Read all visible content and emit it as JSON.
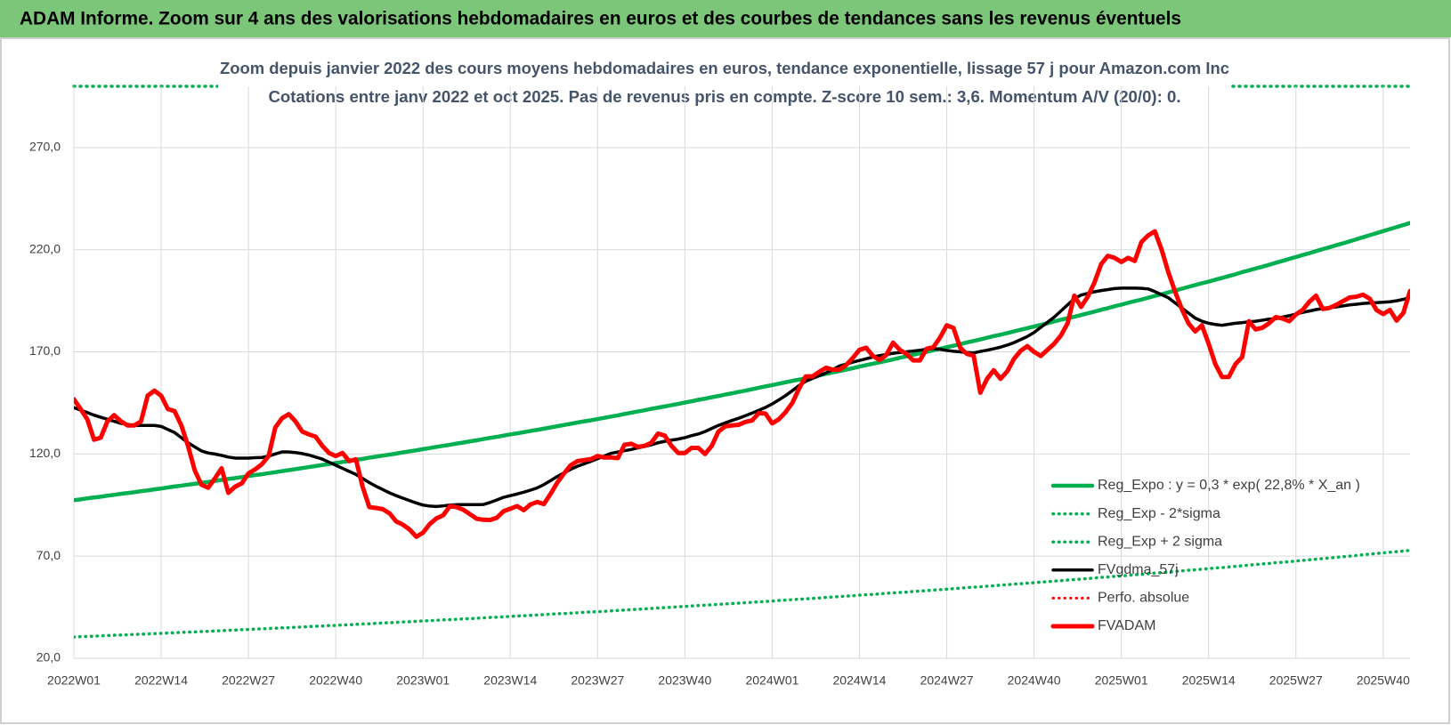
{
  "header": {
    "title": "ADAM Informe. Zoom sur 4 ans des valorisations hebdomadaires en euros et des courbes de tendances sans les revenus éventuels"
  },
  "chart_data": {
    "type": "line",
    "title": "Zoom depuis janvier 2022 des cours moyens hebdomadaires en euros, tendance exponentielle, lissage 57 j pour Amazon.com Inc",
    "subtitle": "Cotations entre janv 2022 et oct 2025. Pas de revenus pris en compte. Z-score 10 sem.: 3,6. Momentum A/V (20/0): 0.",
    "categories": [
      "2022W01",
      null,
      null,
      null,
      null,
      null,
      null,
      null,
      null,
      null,
      null,
      null,
      null,
      "2022W14",
      null,
      null,
      null,
      null,
      null,
      null,
      null,
      null,
      null,
      null,
      null,
      null,
      "2022W27",
      null,
      null,
      null,
      null,
      null,
      null,
      null,
      null,
      null,
      null,
      null,
      null,
      "2022W40",
      null,
      null,
      null,
      null,
      null,
      null,
      null,
      null,
      null,
      null,
      null,
      null,
      "2023W01",
      null,
      null,
      null,
      null,
      null,
      null,
      null,
      null,
      null,
      null,
      null,
      null,
      "2023W14",
      null,
      null,
      null,
      null,
      null,
      null,
      null,
      null,
      null,
      null,
      null,
      null,
      "2023W27",
      null,
      null,
      null,
      null,
      null,
      null,
      null,
      null,
      null,
      null,
      null,
      null,
      "2023W40",
      null,
      null,
      null,
      null,
      null,
      null,
      null,
      null,
      null,
      null,
      null,
      null,
      "2024W01",
      null,
      null,
      null,
      null,
      null,
      null,
      null,
      null,
      null,
      null,
      null,
      null,
      "2024W14",
      null,
      null,
      null,
      null,
      null,
      null,
      null,
      null,
      null,
      null,
      null,
      null,
      "2024W27",
      null,
      null,
      null,
      null,
      null,
      null,
      null,
      null,
      null,
      null,
      null,
      null,
      "2024W40",
      null,
      null,
      null,
      null,
      null,
      null,
      null,
      null,
      null,
      null,
      null,
      null,
      "2025W01",
      null,
      null,
      null,
      null,
      null,
      null,
      null,
      null,
      null,
      null,
      null,
      null,
      "2025W14",
      null,
      null,
      null,
      null,
      null,
      null,
      null,
      null,
      null,
      null,
      null,
      null,
      "2025W27",
      null,
      null,
      null,
      null,
      null,
      null,
      null,
      null,
      null,
      null,
      null,
      null,
      "2025W40",
      null,
      null,
      null,
      null
    ],
    "ylim": [
      20,
      300
    ],
    "yticks": [
      {
        "value": 20,
        "label": "20,0"
      },
      {
        "value": 70,
        "label": "70,0"
      },
      {
        "value": 120,
        "label": "120,0"
      },
      {
        "value": 170,
        "label": "170,0"
      },
      {
        "value": 220,
        "label": "220,0"
      },
      {
        "value": 270,
        "label": "270,0"
      }
    ],
    "grid": true,
    "legend": "right",
    "series": [
      {
        "name": "Reg_Expo : y = 0,3 * exp( 22,8% * X_an )",
        "color": "#00b050",
        "dash": "solid",
        "width": 4.5,
        "values": [
          97.4,
          97.8,
          98.3,
          98.7,
          99.1,
          99.6,
          100.0,
          100.5,
          100.9,
          101.3,
          101.8,
          102.2,
          102.7,
          103.1,
          103.6,
          104.1,
          104.5,
          105.0,
          105.4,
          105.9,
          106.3,
          106.8,
          107.3,
          107.8,
          108.2,
          108.7,
          109.2,
          109.7,
          110.1,
          110.6,
          111.1,
          111.6,
          112.1,
          112.6,
          113.1,
          113.6,
          114.1,
          114.6,
          115.1,
          115.6,
          116.1,
          116.6,
          117.1,
          117.6,
          118.2,
          118.7,
          119.2,
          119.7,
          120.2,
          120.8,
          121.3,
          121.8,
          122.4,
          122.9,
          123.5,
          124.0,
          124.5,
          125.1,
          125.6,
          126.2,
          126.7,
          127.3,
          127.9,
          128.4,
          129.0,
          129.6,
          130.1,
          130.7,
          131.3,
          131.8,
          132.4,
          133.0,
          133.6,
          134.2,
          134.8,
          135.4,
          136.0,
          136.5,
          137.1,
          137.7,
          138.3,
          138.9,
          139.6,
          140.2,
          140.8,
          141.4,
          142.1,
          142.7,
          143.3,
          143.9,
          144.5,
          145.2,
          145.8,
          146.5,
          147.1,
          147.8,
          148.4,
          149.1,
          149.7,
          150.4,
          151.0,
          151.7,
          152.4,
          153.1,
          153.7,
          154.4,
          155.1,
          155.8,
          156.4,
          157.1,
          157.8,
          158.5,
          159.2,
          159.9,
          160.6,
          161.3,
          162.0,
          162.8,
          163.5,
          164.2,
          164.9,
          165.6,
          166.3,
          167.1,
          167.8,
          168.6,
          169.3,
          170.0,
          170.8,
          171.5,
          172.3,
          173.0,
          173.8,
          174.6,
          175.3,
          176.1,
          176.9,
          177.7,
          178.4,
          179.2,
          180.0,
          180.8,
          181.6,
          182.4,
          183.2,
          184.0,
          184.9,
          185.7,
          186.5,
          187.2,
          188.0,
          188.9,
          189.7,
          190.6,
          191.4,
          192.3,
          193.1,
          194.0,
          194.8,
          195.6,
          196.5,
          197.4,
          198.2,
          199.1,
          200.0,
          200.9,
          201.8,
          202.7,
          203.6,
          204.4,
          205.3,
          206.2,
          207.1,
          208.0,
          209.0,
          209.9,
          210.8,
          211.7,
          212.6,
          213.6,
          214.5,
          215.5,
          216.4,
          217.4,
          218.3,
          219.3,
          220.3,
          221.2,
          222.2,
          223.1,
          224.1,
          225.1,
          226.1,
          227.1,
          228.1,
          229.1,
          230.1,
          231.1,
          232.1,
          233.1
        ]
      },
      {
        "name": "Reg_Exp - 2*sigma",
        "color": "#00b050",
        "dash": "dotted",
        "width": 3.5,
        "values": [
          30.4,
          30.6,
          30.7,
          30.8,
          31.0,
          31.1,
          31.3,
          31.4,
          31.5,
          31.7,
          31.8,
          31.9,
          32.1,
          32.2,
          32.4,
          32.5,
          32.7,
          32.8,
          32.9,
          33.1,
          33.2,
          33.4,
          33.5,
          33.7,
          33.8,
          34.0,
          34.1,
          34.3,
          34.4,
          34.6,
          34.7,
          34.9,
          35.0,
          35.2,
          35.3,
          35.5,
          35.7,
          35.8,
          36.0,
          36.1,
          36.3,
          36.4,
          36.6,
          36.8,
          36.9,
          37.1,
          37.3,
          37.4,
          37.6,
          37.8,
          37.9,
          38.1,
          38.3,
          38.4,
          38.6,
          38.8,
          38.9,
          39.1,
          39.3,
          39.4,
          39.6,
          39.8,
          40.0,
          40.1,
          40.3,
          40.5,
          40.7,
          40.8,
          41.0,
          41.2,
          41.4,
          41.6,
          41.8,
          41.9,
          42.1,
          42.3,
          42.5,
          42.7,
          42.8,
          43.0,
          43.2,
          43.4,
          43.6,
          43.8,
          44.0,
          44.2,
          44.4,
          44.6,
          44.8,
          45.0,
          45.2,
          45.4,
          45.6,
          45.8,
          46.0,
          46.2,
          46.4,
          46.6,
          46.8,
          47.0,
          47.2,
          47.4,
          47.6,
          47.8,
          48.0,
          48.3,
          48.5,
          48.7,
          48.9,
          49.1,
          49.3,
          49.5,
          49.8,
          50.0,
          50.2,
          50.4,
          50.6,
          50.9,
          51.1,
          51.3,
          51.5,
          51.8,
          52.0,
          52.2,
          52.4,
          52.7,
          52.9,
          53.1,
          53.4,
          53.6,
          53.8,
          54.1,
          54.3,
          54.6,
          54.8,
          55.0,
          55.3,
          55.5,
          55.8,
          56.0,
          56.3,
          56.5,
          56.8,
          57.0,
          57.3,
          57.5,
          57.8,
          58.0,
          58.3,
          58.5,
          58.8,
          59.0,
          59.3,
          59.6,
          59.8,
          60.1,
          60.3,
          60.6,
          60.9,
          61.1,
          61.4,
          61.7,
          61.9,
          62.2,
          62.5,
          62.8,
          63.1,
          63.3,
          63.6,
          63.9,
          64.2,
          64.4,
          64.7,
          65.0,
          65.3,
          65.6,
          65.9,
          66.2,
          66.4,
          66.8,
          67.0,
          67.3,
          67.6,
          67.9,
          68.2,
          68.5,
          68.8,
          69.1,
          69.4,
          69.7,
          70.0,
          70.3,
          70.7,
          71.0,
          71.3,
          71.6,
          71.9,
          72.2,
          72.5,
          72.8
        ]
      },
      {
        "name": "Reg_Exp + 2 sigma",
        "color": "#00b050",
        "dash": "dotted",
        "width": 3.5
      },
      {
        "name": "FVgdma_57j",
        "color": "#000000",
        "dash": "solid",
        "width": 3.5,
        "values": [
          142.7,
          141.5,
          140.3,
          139,
          138,
          137,
          136,
          135,
          134.5,
          134,
          134,
          134,
          134,
          133.5,
          132,
          130.5,
          128,
          125.5,
          123.5,
          121.5,
          120.5,
          120,
          119.3,
          118.5,
          118,
          118,
          118,
          118.2,
          118.3,
          119,
          120,
          121,
          121,
          120.7,
          120.2,
          119.5,
          118.5,
          117.5,
          116,
          114.5,
          113,
          111.5,
          110,
          108,
          106,
          104.2,
          102.6,
          101,
          99.6,
          98.4,
          97.2,
          96,
          95,
          94.5,
          94.3,
          94.6,
          95,
          95.2,
          95.2,
          95.2,
          95.2,
          95.3,
          96.3,
          97.5,
          98.8,
          99.6,
          100.4,
          101.3,
          102.3,
          103.4,
          105,
          107,
          109,
          110.8,
          112.5,
          114,
          115.2,
          116.4,
          117.7,
          119,
          120.3,
          121,
          121.6,
          122.2,
          123,
          123.7,
          124.5,
          125.5,
          126.2,
          126.8,
          127.3,
          128,
          129,
          129.8,
          131,
          132.5,
          134,
          135.2,
          136.4,
          137.5,
          138.7,
          140,
          141.4,
          142.8,
          144.5,
          146.5,
          148.6,
          151,
          153.5,
          155.6,
          157,
          158.3,
          159.7,
          161.3,
          163,
          164,
          165,
          165.8,
          166.6,
          167.5,
          168.2,
          168.7,
          169.3,
          169.7,
          170,
          170.4,
          170.8,
          171.3,
          171.7,
          171.2,
          170.7,
          170.3,
          170,
          169.7,
          169.5,
          170.2,
          170.8,
          171.5,
          172.3,
          173.3,
          174.5,
          176,
          177.5,
          179.5,
          182,
          184.5,
          187,
          190,
          193,
          196,
          197.8,
          198.6,
          199.4,
          200,
          200.5,
          201,
          201.2,
          201.2,
          201.2,
          201.1,
          200.8,
          199.5,
          198,
          196.5,
          194,
          191.5,
          189,
          186.5,
          185,
          184,
          183.4,
          183,
          183.5,
          184,
          184.3,
          184.7,
          185,
          185.5,
          186,
          186.2,
          187,
          187.7,
          188.5,
          189.3,
          190,
          190.7,
          191.2,
          191.7,
          192,
          192.5,
          193,
          193.3,
          193.7,
          193.9,
          194.1,
          194.3,
          194.5,
          195,
          195.7,
          196.6
        ]
      },
      {
        "name": "Perfo. absolue",
        "color": "#ff0000",
        "dash": "dotted",
        "width": 3
      },
      {
        "name": "FVADAM",
        "color": "#ff0000",
        "dash": "solid",
        "width": 5,
        "values": [
          146.8,
          142,
          137,
          127,
          128,
          136,
          139,
          136,
          134,
          134,
          136,
          148.6,
          151,
          148.5,
          142,
          141,
          134,
          124,
          112,
          105,
          103.5,
          108,
          113,
          101,
          104,
          105.6,
          110.5,
          112.5,
          115,
          119,
          133,
          137.5,
          139.5,
          136,
          131,
          129.6,
          128.5,
          124,
          120.5,
          119,
          120.5,
          116.5,
          117.4,
          104,
          94,
          93.6,
          93,
          91,
          87,
          85.4,
          83,
          79.5,
          81.5,
          85.7,
          88.5,
          90,
          94.5,
          94,
          92.7,
          90.5,
          88.3,
          87.8,
          87.7,
          88.8,
          92,
          93.2,
          94.5,
          92.5,
          95.3,
          96.5,
          95.5,
          100.5,
          106,
          110.5,
          114.5,
          116.5,
          117,
          117.5,
          119,
          118.3,
          118.3,
          118,
          124.5,
          125,
          123.5,
          124,
          125.5,
          130,
          129,
          124,
          120.5,
          120.5,
          123,
          123,
          120,
          124,
          131,
          133.5,
          134,
          134.3,
          135.7,
          136.4,
          140,
          139.8,
          135,
          137,
          140.5,
          145,
          152,
          158,
          158,
          160.2,
          162.2,
          161.3,
          161.3,
          163.5,
          167,
          171,
          172,
          168,
          166,
          168.5,
          174.5,
          171,
          169,
          165.8,
          165.8,
          171.5,
          172.3,
          177,
          183,
          181.7,
          172,
          169,
          168.2,
          150,
          156.8,
          161,
          156.8,
          160.4,
          166.5,
          170.5,
          172.8,
          170,
          168,
          171,
          174,
          178,
          184,
          197.5,
          192,
          197,
          204,
          213,
          217,
          216,
          214,
          216,
          214.5,
          223.8,
          227,
          229,
          220,
          209,
          199.5,
          191,
          184,
          180,
          183,
          174,
          164,
          157.7,
          157.7,
          164,
          167.5,
          185,
          181,
          181.8,
          184,
          187,
          186.3,
          185,
          188.3,
          190.5,
          194.5,
          197.5,
          191,
          191.5,
          193,
          194.8,
          196.6,
          197,
          198,
          196,
          190.5,
          188.5,
          190.5,
          185.3,
          189,
          199.8
        ]
      }
    ]
  }
}
